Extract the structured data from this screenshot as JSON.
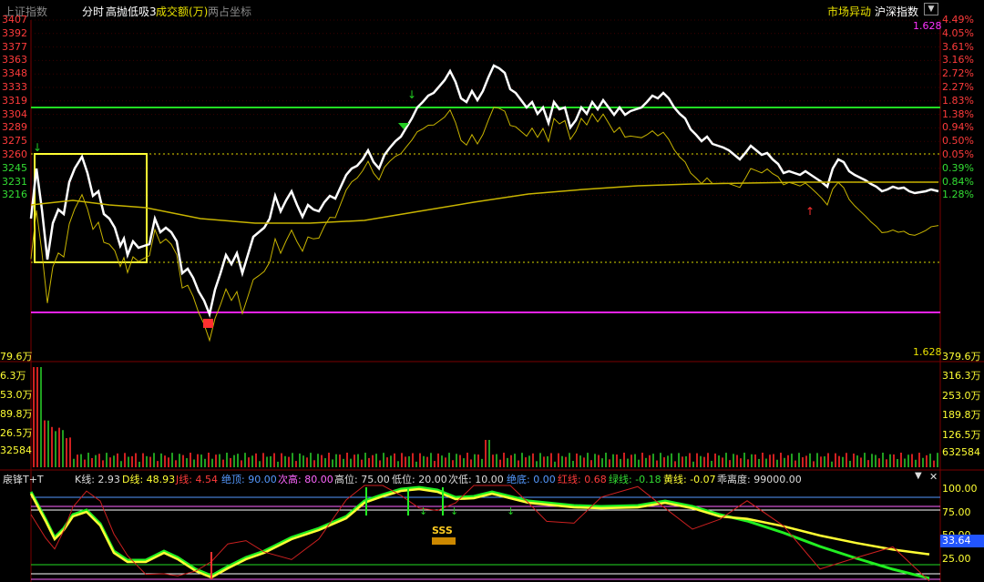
{
  "header": {
    "index_name": "上证指数",
    "mode": "分时",
    "strategy": "高抛低吸3",
    "volume_label": "成交额(万)",
    "coord_label": "两占坐标",
    "market_anomaly": "市场异动",
    "hs_index": "沪深指数",
    "top_right_value": "1.628",
    "bottom_right_value": "1.628"
  },
  "price_axis": {
    "left": [
      "3407",
      "3392",
      "3377",
      "3363",
      "3348",
      "3333",
      "3319",
      "3304",
      "3289",
      "3275",
      "3260",
      "3245",
      "3231",
      "3216"
    ],
    "right": [
      "4.49%",
      "4.05%",
      "3.61%",
      "3.16%",
      "2.72%",
      "2.27%",
      "1.83%",
      "1.38%",
      "0.94%",
      "0.50%",
      "0.05%",
      "0.39%",
      "0.84%",
      "1.28%"
    ],
    "right_colors": [
      "#ff3b3b",
      "#ff3b3b",
      "#ff3b3b",
      "#ff3b3b",
      "#ff3b3b",
      "#ff3b3b",
      "#ff3b3b",
      "#ff3b3b",
      "#ff3b3b",
      "#ff3b3b",
      "#ff3b3b",
      "#33dd33",
      "#33dd33",
      "#33dd33"
    ]
  },
  "volume_axis": {
    "left": [
      "79.6万",
      "6.3万",
      "53.0万",
      "89.8万",
      "26.5万",
      "32584"
    ],
    "right": [
      "379.6万",
      "316.3万",
      "253.0万",
      "189.8万",
      "126.5万",
      "632584"
    ]
  },
  "indicator": {
    "name": "扆锋T+T",
    "k": "K线: 2.93",
    "d": "D线: 48.93",
    "j": "J线: 4.54",
    "top": "绝顶: 90.00",
    "subhigh": "次高: 80.00",
    "high": "高位: 75.00",
    "low": "低位: 20.00",
    "sublow": "次低: 10.00",
    "bottom": "绝底: 0.00",
    "redline": "红线: 0.68",
    "greenline": "绿线: -0.18",
    "yellowline": "黄线: -0.07",
    "deviation": "乖离度: 99000.00",
    "axis": [
      "100.00",
      "75.00",
      "50.00",
      "25.00"
    ],
    "current_value": "33.64",
    "sss_label": "SSS"
  },
  "colors": {
    "price_line": "#ffffff",
    "avg_line": "#c8b400",
    "green_line": "#22dd22",
    "magenta_line": "#ee22ee",
    "box": "#ffff33",
    "up": "#ff3030",
    "down": "#22cc22"
  }
}
